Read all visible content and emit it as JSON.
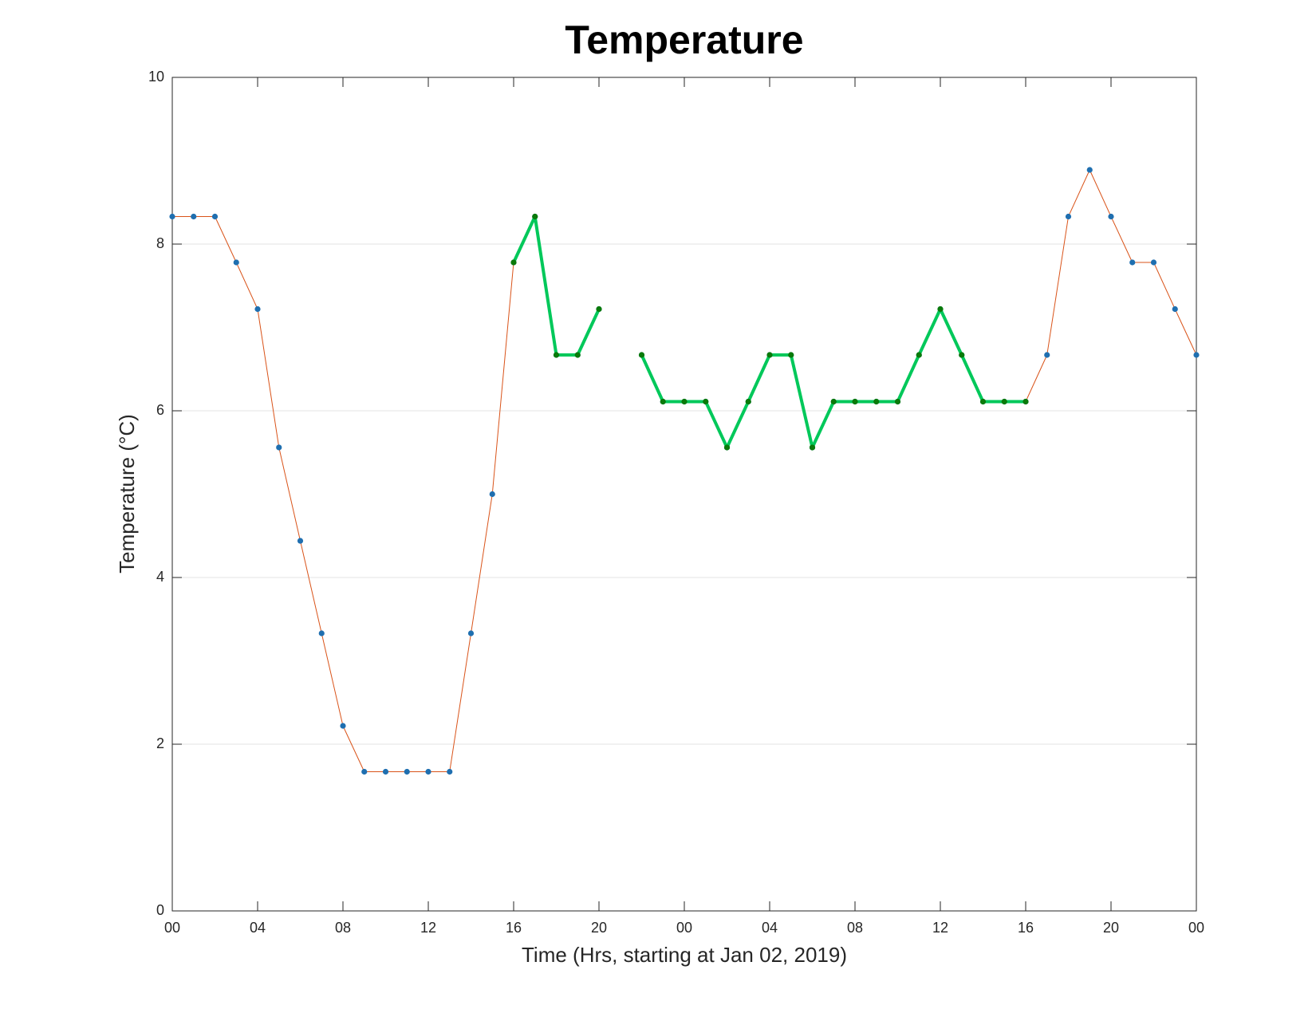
{
  "chart_data": {
    "type": "line",
    "title": "Temperature",
    "x_label": "Time (Hrs, starting at Jan 02, 2019)",
    "y_label": "Temperature (°C)",
    "x": [
      0,
      1,
      2,
      3,
      4,
      5,
      6,
      7,
      8,
      9,
      10,
      11,
      12,
      13,
      14,
      15,
      16,
      17,
      18,
      19,
      20,
      21,
      22,
      23,
      24,
      25,
      26,
      27,
      28,
      29,
      30,
      31,
      32,
      33,
      34,
      35,
      36,
      37,
      38,
      39,
      40,
      41,
      42,
      43,
      44,
      45,
      46,
      47,
      48
    ],
    "series": [
      {
        "color": "#d95319",
        "marker_color": "#1f6fb0",
        "line_width": 1,
        "values": [
          8.33,
          8.33,
          8.33,
          7.78,
          7.22,
          5.56,
          4.44,
          3.33,
          2.22,
          1.67,
          1.67,
          1.67,
          1.67,
          1.67,
          3.33,
          5.0,
          7.78,
          8.33,
          6.67,
          6.67,
          7.22,
          null,
          6.67,
          6.11,
          6.11,
          6.11,
          5.56,
          6.11,
          6.67,
          6.67,
          5.56,
          6.11,
          6.11,
          6.11,
          6.11,
          6.67,
          7.22,
          6.67,
          6.11,
          6.11,
          6.11,
          6.67,
          8.33,
          8.89,
          8.33,
          7.78,
          7.78,
          7.22,
          6.67
        ]
      },
      {
        "color": "#00c85a",
        "marker_color": "#0a7a0a",
        "line_width": 4,
        "values": [
          null,
          null,
          null,
          null,
          null,
          null,
          null,
          null,
          null,
          null,
          null,
          null,
          null,
          null,
          null,
          null,
          7.78,
          8.33,
          6.67,
          6.67,
          7.22,
          null,
          6.67,
          6.11,
          6.11,
          6.11,
          5.56,
          6.11,
          6.67,
          6.67,
          5.56,
          6.11,
          6.11,
          6.11,
          6.11,
          6.67,
          7.22,
          6.67,
          6.11,
          6.11,
          6.11,
          null,
          null,
          null,
          null,
          null,
          null,
          null,
          null
        ]
      }
    ],
    "xlim": [
      0,
      48
    ],
    "xticks": [
      {
        "value": 0,
        "label": "00"
      },
      {
        "value": 4,
        "label": "04"
      },
      {
        "value": 8,
        "label": "08"
      },
      {
        "value": 12,
        "label": "12"
      },
      {
        "value": 16,
        "label": "16"
      },
      {
        "value": 20,
        "label": "20"
      },
      {
        "value": 24,
        "label": "00"
      },
      {
        "value": 28,
        "label": "04"
      },
      {
        "value": 32,
        "label": "08"
      },
      {
        "value": 36,
        "label": "12"
      },
      {
        "value": 40,
        "label": "16"
      },
      {
        "value": 44,
        "label": "20"
      },
      {
        "value": 48,
        "label": "00"
      }
    ],
    "ylim": [
      0,
      10
    ],
    "yticks": [
      0,
      2,
      4,
      6,
      8,
      10
    ],
    "grid": true
  }
}
